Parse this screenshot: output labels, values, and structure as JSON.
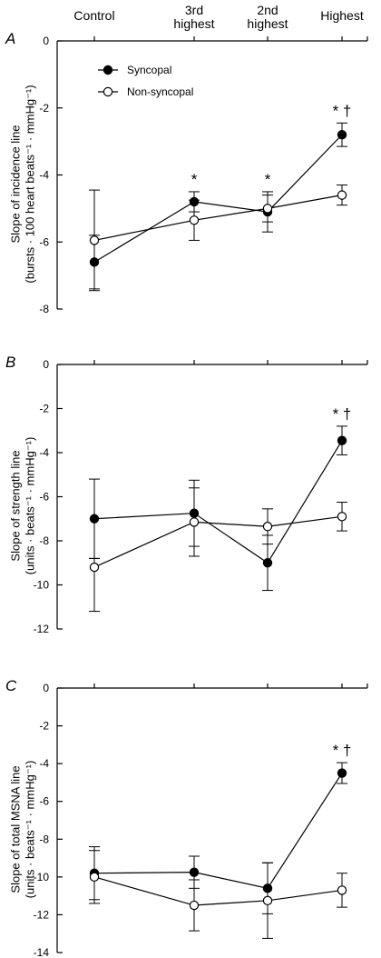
{
  "categories": [
    "Control",
    "3rd highest",
    "2nd highest",
    "Highest"
  ],
  "category_label_lines": [
    [
      "Control"
    ],
    [
      "3rd",
      "highest"
    ],
    [
      "2nd",
      "highest"
    ],
    [
      "Highest"
    ]
  ],
  "legend": {
    "syncopal": "Syncopal",
    "non_syncopal": "Non-syncopal"
  },
  "colors": {
    "syncopal_marker": "#000000",
    "non_syncopal_marker": "#ffffff",
    "lines": "#000000"
  },
  "chart_data": [
    {
      "type": "line",
      "panel": "A",
      "ylabel_line1": "Slope of incidence line",
      "ylabel_line2": "(bursts · 100 heart beats⁻¹ · mmHg⁻¹)",
      "ylim": [
        -8,
        0
      ],
      "yticks": [
        0,
        -2,
        -4,
        -6,
        -8
      ],
      "categories": [
        "Control",
        "3rd highest",
        "2nd highest",
        "Highest"
      ],
      "series": [
        {
          "name": "Syncopal",
          "values": [
            -6.6,
            -4.8,
            -5.1,
            -2.8
          ],
          "err_low": [
            0.8,
            0.3,
            0.6,
            0.35
          ],
          "err_high": [
            0.8,
            0.3,
            0.6,
            0.35
          ]
        },
        {
          "name": "Non-syncopal",
          "values": [
            -5.95,
            -5.35,
            -5.0,
            -4.6
          ],
          "err_low": [
            1.5,
            0.6,
            0.4,
            0.3
          ],
          "err_high": [
            1.5,
            0.6,
            0.4,
            0.3
          ]
        }
      ],
      "annotations": [
        {
          "index": 1,
          "text": "*"
        },
        {
          "index": 2,
          "text": "*"
        },
        {
          "index": 3,
          "text": "* †"
        }
      ]
    },
    {
      "type": "line",
      "panel": "B",
      "ylabel_line1": "Slope of strength line",
      "ylabel_line2": "(units · beats⁻¹ · mmHg⁻¹)",
      "ylim": [
        -12,
        0
      ],
      "yticks": [
        0,
        -2,
        -4,
        -6,
        -8,
        -10,
        -12
      ],
      "categories": [
        "Control",
        "3rd highest",
        "2nd highest",
        "Highest"
      ],
      "series": [
        {
          "name": "Syncopal",
          "values": [
            -7.0,
            -6.75,
            -9.0,
            -3.45
          ],
          "err_low": [
            1.8,
            1.5,
            1.25,
            0.65
          ],
          "err_high": [
            1.8,
            1.5,
            1.25,
            0.65
          ]
        },
        {
          "name": "Non-syncopal",
          "values": [
            -9.2,
            -7.15,
            -7.35,
            -6.9
          ],
          "err_low": [
            2.0,
            1.55,
            0.8,
            0.65
          ],
          "err_high": [
            0.4,
            1.55,
            0.8,
            0.65
          ]
        }
      ],
      "annotations": [
        {
          "index": 3,
          "text": "* †"
        }
      ]
    },
    {
      "type": "line",
      "panel": "C",
      "ylabel_line1": "Slope of total MSNA line",
      "ylabel_line2": "(units · beats⁻¹ · mmHg⁻¹)",
      "ylim": [
        -14,
        0
      ],
      "yticks": [
        0,
        -2,
        -4,
        -6,
        -8,
        -10,
        -12,
        -14
      ],
      "categories": [
        "Control",
        "3rd highest",
        "2nd highest",
        "Highest"
      ],
      "series": [
        {
          "name": "Syncopal",
          "values": [
            -9.8,
            -9.75,
            -10.6,
            -4.5
          ],
          "err_low": [
            1.4,
            0.85,
            1.35,
            0.55
          ],
          "err_high": [
            1.4,
            0.85,
            1.35,
            0.55
          ]
        },
        {
          "name": "Non-syncopal",
          "values": [
            -10.0,
            -11.5,
            -11.25,
            -10.7
          ],
          "err_low": [
            1.4,
            1.35,
            2.0,
            0.9
          ],
          "err_high": [
            1.4,
            1.35,
            2.0,
            0.9
          ]
        }
      ],
      "annotations": [
        {
          "index": 3,
          "text": "* †"
        }
      ]
    }
  ]
}
